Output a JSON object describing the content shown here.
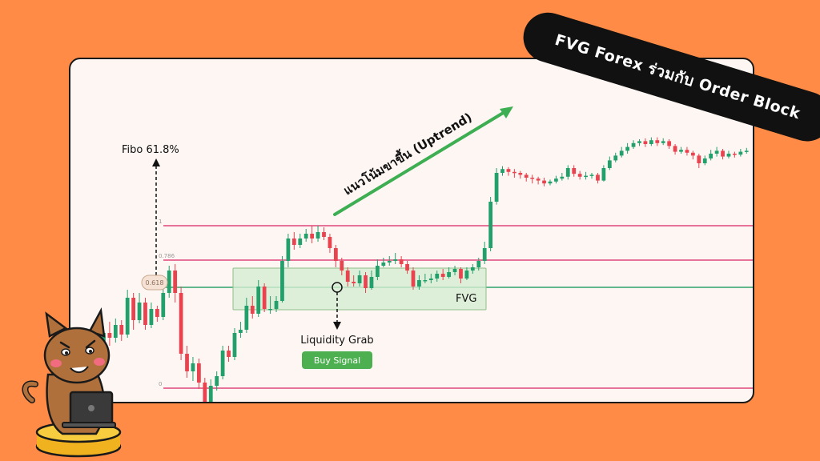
{
  "banner": {
    "title": "FVG Forex ร่วมกับ Order Block"
  },
  "annotations": {
    "fibo": "Fibo 61.8%",
    "uptrend": "แนวโน้มขาขึ้น (Uptrend)",
    "fvg": "FVG",
    "liquidity": "Liquidity Grab",
    "buy_signal": "Buy Signal"
  },
  "colors": {
    "bull": "#22A06B",
    "bear": "#E8434F",
    "fib_line": "#E0457B",
    "fvg_zone": "#D5ECD2",
    "fvg_border": "#8FBF8A",
    "fib618_line": "#2FA36B",
    "trend_arrow": "#3DAE52",
    "buy_badge": "#4CAF50"
  },
  "chart_data": {
    "type": "candlestick",
    "fib_levels": [
      {
        "label": "1",
        "value": 1
      },
      {
        "label": "0.786",
        "value": 0.786
      },
      {
        "label": "0.618",
        "value": 0.618
      },
      {
        "label": "0",
        "value": 0
      }
    ],
    "ylim": [
      -1.2,
      1.9
    ],
    "candles": [
      [
        -0.1,
        0.12,
        0.15,
        -0.15
      ],
      [
        0.12,
        0.18,
        0.22,
        0.08
      ],
      [
        0.18,
        0.08,
        0.22,
        0.04
      ],
      [
        0.08,
        0.22,
        0.26,
        0.05
      ],
      [
        0.22,
        0.33,
        0.37,
        0.18
      ],
      [
        0.33,
        0.3,
        0.4,
        0.25
      ],
      [
        0.3,
        0.38,
        0.42,
        0.27
      ],
      [
        0.38,
        0.32,
        0.41,
        0.28
      ],
      [
        0.32,
        0.55,
        0.6,
        0.3
      ],
      [
        0.55,
        0.41,
        0.58,
        0.35
      ],
      [
        0.41,
        0.52,
        0.58,
        0.39
      ],
      [
        0.52,
        0.38,
        0.55,
        0.35
      ],
      [
        0.38,
        0.48,
        0.52,
        0.36
      ],
      [
        0.48,
        0.43,
        0.5,
        0.4
      ],
      [
        0.43,
        0.58,
        0.63,
        0.41
      ],
      [
        0.58,
        0.72,
        0.75,
        0.55
      ],
      [
        0.72,
        0.58,
        0.76,
        0.52
      ],
      [
        0.58,
        0.2,
        0.62,
        0.16
      ],
      [
        0.2,
        0.09,
        0.25,
        0.05
      ],
      [
        0.09,
        0.14,
        0.18,
        0.03
      ],
      [
        0.14,
        0.02,
        0.17,
        -0.02
      ],
      [
        0.02,
        -0.12,
        0.05,
        -0.15
      ],
      [
        -0.12,
        0.0,
        0.04,
        -0.15
      ],
      [
        0.0,
        0.06,
        0.09,
        -0.03
      ],
      [
        0.06,
        0.22,
        0.25,
        0.04
      ],
      [
        0.22,
        0.18,
        0.25,
        0.15
      ],
      [
        0.18,
        0.33,
        0.36,
        0.16
      ],
      [
        0.33,
        0.35,
        0.4,
        0.3
      ],
      [
        0.35,
        0.5,
        0.55,
        0.33
      ],
      [
        0.5,
        0.45,
        0.56,
        0.42
      ],
      [
        0.45,
        0.62,
        0.66,
        0.43
      ],
      [
        0.62,
        0.48,
        0.64,
        0.46
      ],
      [
        0.48,
        0.48,
        0.56,
        0.45
      ],
      [
        0.48,
        0.53,
        0.56,
        0.46
      ],
      [
        0.53,
        0.78,
        0.81,
        0.52
      ],
      [
        0.78,
        0.92,
        0.95,
        0.74
      ],
      [
        0.92,
        0.88,
        0.96,
        0.85
      ],
      [
        0.88,
        0.92,
        0.95,
        0.86
      ],
      [
        0.92,
        0.95,
        0.98,
        0.9
      ],
      [
        0.95,
        0.92,
        1.0,
        0.89
      ],
      [
        0.92,
        0.96,
        1.0,
        0.9
      ],
      [
        0.96,
        0.93,
        0.99,
        0.91
      ],
      [
        0.93,
        0.86,
        0.95,
        0.83
      ],
      [
        0.86,
        0.78,
        0.88,
        0.74
      ],
      [
        0.78,
        0.72,
        0.8,
        0.69
      ],
      [
        0.72,
        0.65,
        0.74,
        0.62
      ],
      [
        0.65,
        0.64,
        0.69,
        0.62
      ],
      [
        0.64,
        0.69,
        0.72,
        0.62
      ],
      [
        0.69,
        0.61,
        0.71,
        0.58
      ],
      [
        0.61,
        0.68,
        0.72,
        0.6
      ],
      [
        0.68,
        0.75,
        0.79,
        0.66
      ],
      [
        0.75,
        0.77,
        0.8,
        0.74
      ],
      [
        0.77,
        0.78,
        0.81,
        0.75
      ],
      [
        0.78,
        0.79,
        0.83,
        0.76
      ],
      [
        0.79,
        0.76,
        0.81,
        0.74
      ],
      [
        0.76,
        0.72,
        0.78,
        0.7
      ],
      [
        0.72,
        0.62,
        0.74,
        0.6
      ],
      [
        0.62,
        0.66,
        0.69,
        0.6
      ],
      [
        0.66,
        0.66,
        0.7,
        0.64
      ],
      [
        0.66,
        0.67,
        0.7,
        0.64
      ],
      [
        0.67,
        0.7,
        0.72,
        0.65
      ],
      [
        0.7,
        0.68,
        0.73,
        0.66
      ],
      [
        0.68,
        0.71,
        0.74,
        0.67
      ],
      [
        0.71,
        0.73,
        0.75,
        0.69
      ],
      [
        0.73,
        0.67,
        0.74,
        0.64
      ],
      [
        0.67,
        0.72,
        0.74,
        0.66
      ],
      [
        0.72,
        0.74,
        0.76,
        0.7
      ],
      [
        0.74,
        0.78,
        0.8,
        0.72
      ],
      [
        0.78,
        0.86,
        0.9,
        0.76
      ],
      [
        0.86,
        1.25,
        1.3,
        0.84
      ],
      [
        1.25,
        1.55,
        1.6,
        1.22
      ],
      [
        1.55,
        1.59,
        1.62,
        1.52
      ],
      [
        1.59,
        1.56,
        1.61,
        1.52
      ],
      [
        1.56,
        1.55,
        1.59,
        1.5
      ],
      [
        1.55,
        1.53,
        1.57,
        1.49
      ],
      [
        1.53,
        1.5,
        1.55,
        1.46
      ],
      [
        1.5,
        1.49,
        1.53,
        1.44
      ],
      [
        1.49,
        1.47,
        1.51,
        1.43
      ],
      [
        1.47,
        1.44,
        1.5,
        1.41
      ],
      [
        1.44,
        1.46,
        1.48,
        1.42
      ],
      [
        1.46,
        1.49,
        1.52,
        1.44
      ],
      [
        1.49,
        1.51,
        1.55,
        1.47
      ],
      [
        1.51,
        1.6,
        1.63,
        1.48
      ],
      [
        1.6,
        1.54,
        1.63,
        1.51
      ],
      [
        1.54,
        1.51,
        1.57,
        1.48
      ],
      [
        1.51,
        1.52,
        1.56,
        1.48
      ],
      [
        1.52,
        1.53,
        1.55,
        1.49
      ],
      [
        1.53,
        1.47,
        1.55,
        1.44
      ],
      [
        1.47,
        1.6,
        1.63,
        1.46
      ],
      [
        1.6,
        1.68,
        1.72,
        1.58
      ],
      [
        1.68,
        1.73,
        1.76,
        1.66
      ],
      [
        1.73,
        1.78,
        1.82,
        1.71
      ],
      [
        1.78,
        1.82,
        1.86,
        1.75
      ],
      [
        1.82,
        1.86,
        1.89,
        1.8
      ],
      [
        1.86,
        1.88,
        1.9,
        1.83
      ],
      [
        1.88,
        1.85,
        1.91,
        1.82
      ],
      [
        1.85,
        1.89,
        1.92,
        1.83
      ],
      [
        1.89,
        1.86,
        1.92,
        1.83
      ],
      [
        1.86,
        1.88,
        1.91,
        1.84
      ],
      [
        1.88,
        1.83,
        1.9,
        1.8
      ],
      [
        1.83,
        1.77,
        1.85,
        1.74
      ],
      [
        1.77,
        1.79,
        1.82,
        1.75
      ],
      [
        1.79,
        1.76,
        1.82,
        1.73
      ],
      [
        1.76,
        1.73,
        1.78,
        1.69
      ],
      [
        1.73,
        1.65,
        1.75,
        1.6
      ],
      [
        1.65,
        1.7,
        1.73,
        1.63
      ],
      [
        1.7,
        1.75,
        1.79,
        1.68
      ],
      [
        1.75,
        1.78,
        1.82,
        1.72
      ],
      [
        1.78,
        1.72,
        1.8,
        1.69
      ],
      [
        1.72,
        1.75,
        1.78,
        1.7
      ],
      [
        1.75,
        1.74,
        1.77,
        1.71
      ],
      [
        1.74,
        1.77,
        1.8,
        1.72
      ],
      [
        1.77,
        1.78,
        1.81,
        1.75
      ]
    ]
  }
}
